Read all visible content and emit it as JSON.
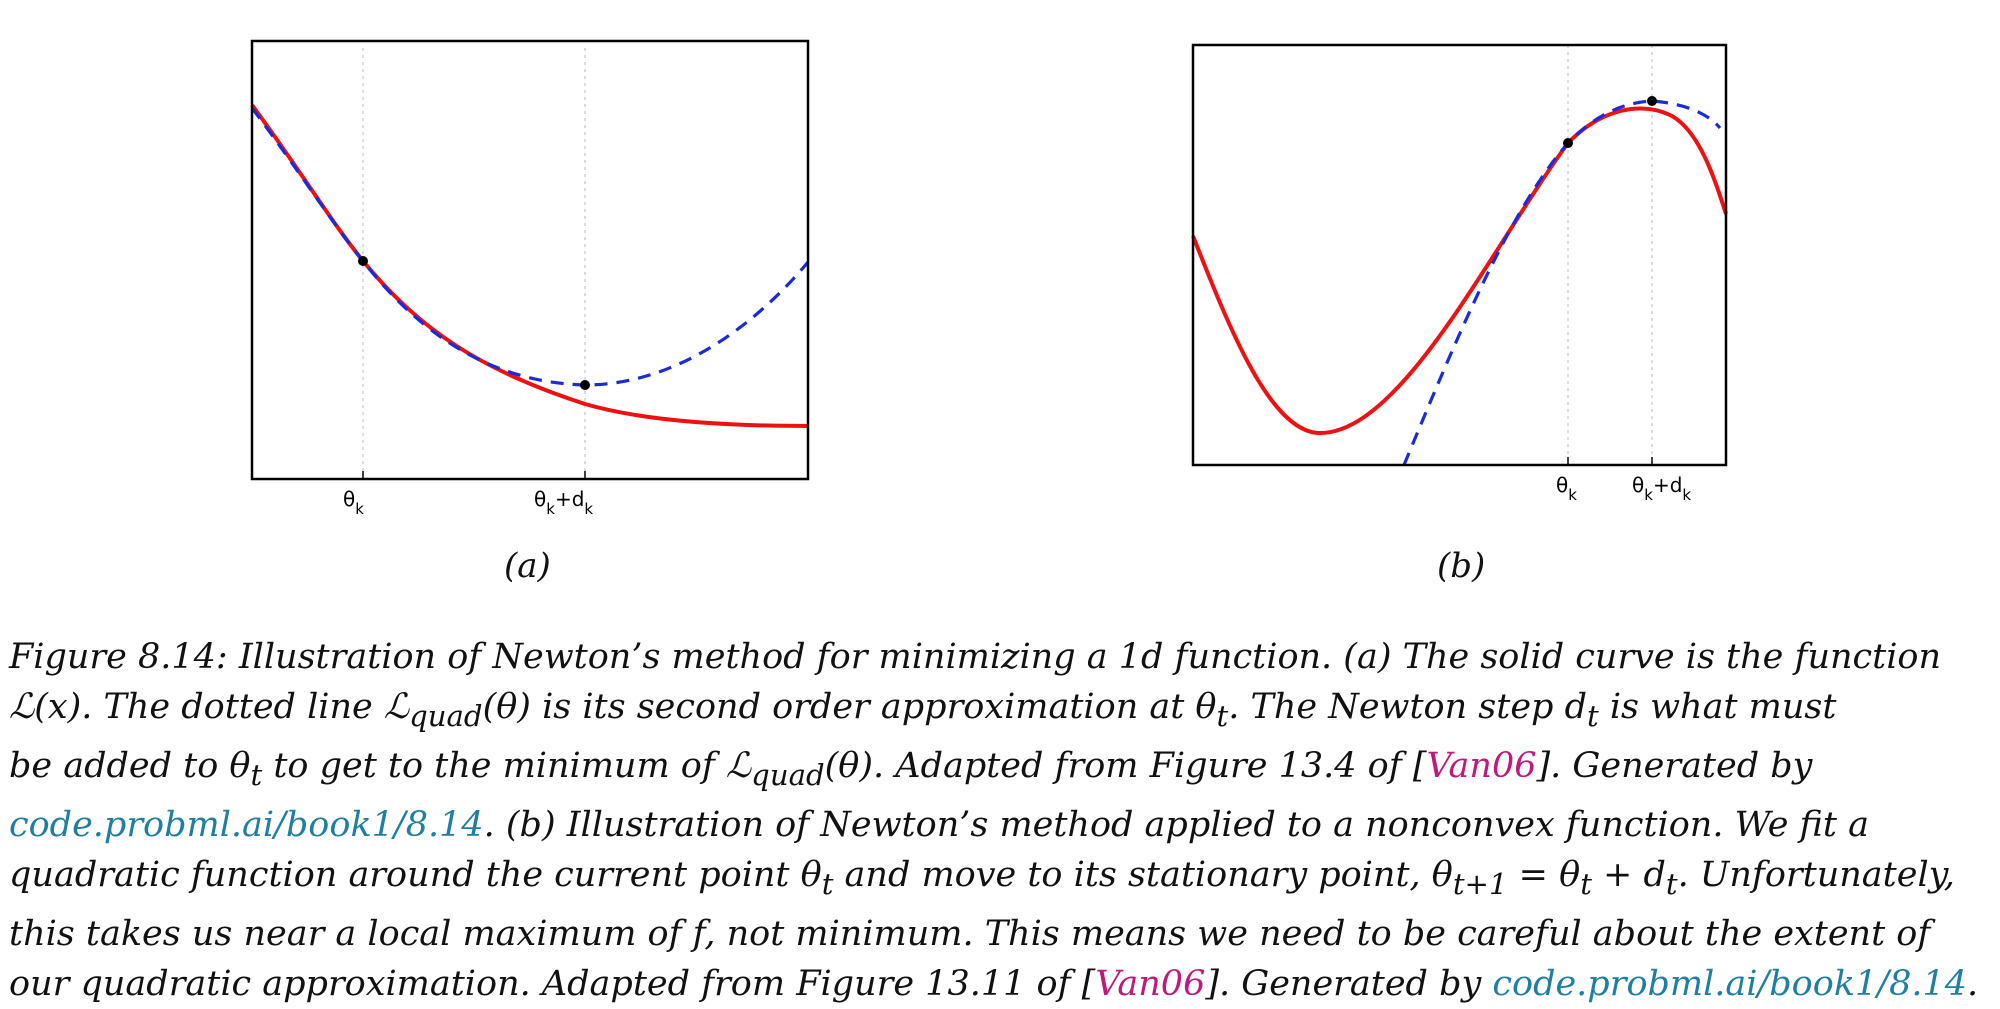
{
  "panels": {
    "a": {
      "label": "(a)",
      "tick_theta": "θ",
      "tick_theta_sub": "k",
      "tick_step": "θ",
      "tick_step_sub": "k",
      "tick_step_mid": "+d",
      "tick_step_sub2": "k"
    },
    "b": {
      "label": "(b)",
      "tick_theta": "θ",
      "tick_theta_sub": "k",
      "tick_step": "θ",
      "tick_step_sub": "k",
      "tick_step_mid": "+d",
      "tick_step_sub2": "k"
    }
  },
  "colors": {
    "function_curve": "#ee1111",
    "quadratic_approx": "#1c2bd6",
    "points": "#000000",
    "cite": "#c0187c",
    "link": "#1f7fa3"
  },
  "caption": {
    "l1": "Figure 8.14: Illustration of Newton’s method for minimizing a 1d function. (a) The solid curve is the function",
    "l2a": "ℒ(x). The dotted line ℒ",
    "l2sub1": "quad",
    "l2b": "(θ) is its second order approximation at θ",
    "l2sub2": "t",
    "l2c": ". The Newton step d",
    "l2sub3": "t",
    "l2d": " is what must",
    "l3a": "be added to θ",
    "l3sub1": "t",
    "l3b": " to get to the minimum of ℒ",
    "l3sub2": "quad",
    "l3c": "(θ). Adapted from Figure 13.4 of [",
    "l3cite": "Van06",
    "l3d": "]. Generated by",
    "l4link": "code.probml.ai/book1/8.14",
    "l4b": ". (b) Illustration of Newton’s method applied to a nonconvex function. We fit a",
    "l5a": "quadratic function around the current point θ",
    "l5sub1": "t",
    "l5b": " and move to its stationary point, θ",
    "l5sub2": "t+1",
    "l5c": " = θ",
    "l5sub3": "t",
    "l5d": " + d",
    "l5sub4": "t",
    "l5e": ". Unfortunately,",
    "l6": "this takes us near a local maximum of f, not minimum. This means we need to be careful about the extent of",
    "l7a": "our quadratic approximation. Adapted from Figure 13.11 of [",
    "l7cite": "Van06",
    "l7b": "]. Generated by ",
    "l7link": "code.probml.ai/book1/8.14",
    "l7c": "."
  }
}
